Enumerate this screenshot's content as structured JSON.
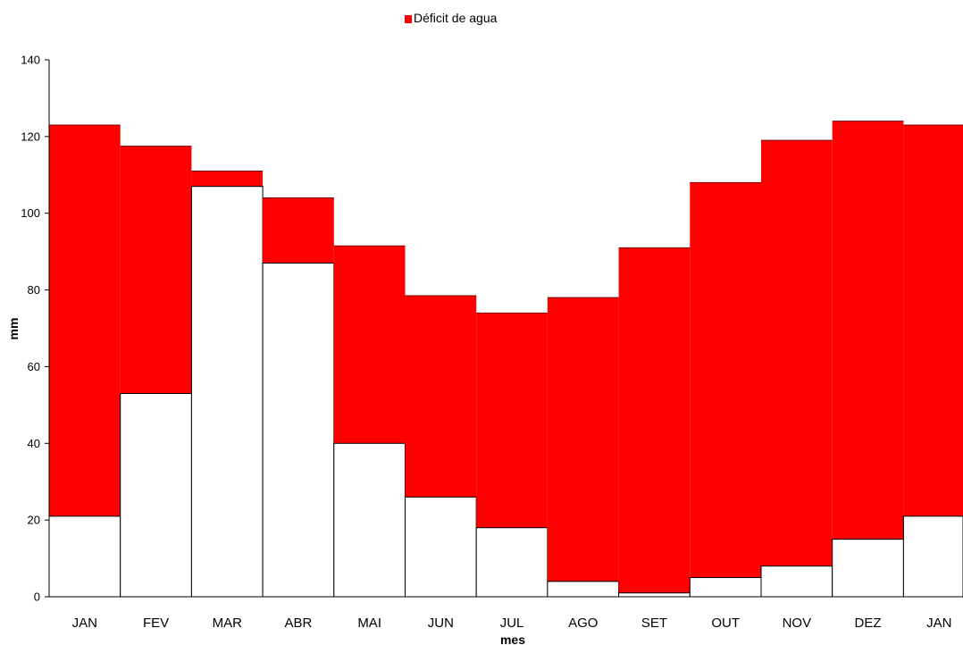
{
  "chart_data": {
    "type": "area",
    "categories": [
      "JAN",
      "FEV",
      "MAR",
      "ABR",
      "MAI",
      "JUN",
      "JUL",
      "AGO",
      "SET",
      "OUT",
      "NOV",
      "DEZ",
      "JAN"
    ],
    "series": [
      {
        "name": "Déficit de agua",
        "role": "upper",
        "color": "#ff0000",
        "values": [
          123,
          117.5,
          111,
          104,
          91.5,
          78.5,
          74,
          78,
          91,
          108,
          119,
          124,
          123
        ]
      },
      {
        "role": "lower",
        "color": "#ffffff",
        "values": [
          21,
          53,
          107,
          87,
          40,
          26,
          18,
          4,
          1,
          5,
          8,
          15,
          21
        ]
      }
    ],
    "legend": {
      "position": "top",
      "label": "Déficit de agua",
      "color": "#ff0000"
    },
    "xlabel": "mes",
    "ylabel": "mm",
    "yticks": [
      "0",
      "20",
      "40",
      "60",
      "80",
      "100",
      "120",
      "140"
    ],
    "ylim": [
      0,
      140
    ],
    "step_style": "stepped",
    "grid": false
  }
}
